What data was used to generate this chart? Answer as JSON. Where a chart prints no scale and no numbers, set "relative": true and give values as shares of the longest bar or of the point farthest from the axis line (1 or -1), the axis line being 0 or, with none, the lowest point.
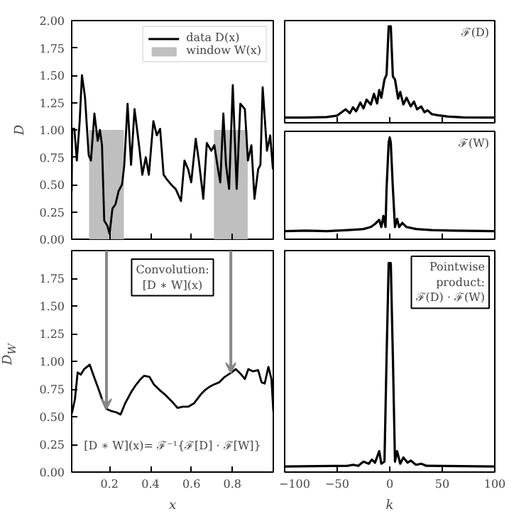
{
  "chart_data": [
    {
      "type": "line",
      "xlim": [
        0.015,
        1.0
      ],
      "ylim": [
        0,
        2
      ],
      "xticks": [
        0.2,
        0.4,
        0.6,
        0.8
      ],
      "yticks": [
        {
          "value": 0,
          "label": "0.00"
        },
        {
          "value": 0.25,
          "label": "0.25"
        },
        {
          "value": 0.5,
          "label": "0.50"
        },
        {
          "value": 0.75,
          "label": "0.75"
        },
        {
          "value": 1,
          "label": "1.00"
        },
        {
          "value": 1.25,
          "label": "1.25"
        },
        {
          "value": 1.5,
          "label": "1.50"
        },
        {
          "value": 1.75,
          "label": "1.75"
        },
        {
          "value": 2,
          "label": "2.00"
        }
      ],
      "tick_labels": "y",
      "ylabel": "D",
      "legend": "top right",
      "grid": false,
      "series": [
        {
          "name": "data D(x)",
          "type": "line",
          "color": "#000000",
          "x": [
            0.015,
            0.017,
            0.028,
            0.04,
            0.054,
            0.065,
            0.08,
            0.098,
            0.109,
            0.126,
            0.142,
            0.153,
            0.163,
            0.174,
            0.19,
            0.2,
            0.214,
            0.229,
            0.244,
            0.261,
            0.272,
            0.288,
            0.305,
            0.322,
            0.344,
            0.36,
            0.377,
            0.392,
            0.414,
            0.431,
            0.447,
            0.464,
            0.479,
            0.501,
            0.523,
            0.549,
            0.566,
            0.584,
            0.599,
            0.621,
            0.636,
            0.658,
            0.675,
            0.697,
            0.712,
            0.73,
            0.741,
            0.756,
            0.769,
            0.784,
            0.802,
            0.821,
            0.839,
            0.861,
            0.876,
            0.893,
            0.908,
            0.926,
            0.937,
            0.948,
            0.969,
            0.985,
            0.998
          ],
          "values": [
            0.44,
            1.01,
            1.01,
            0.72,
            1.08,
            1.5,
            1.3,
            0.77,
            0.72,
            1.15,
            0.9,
            1.0,
            0.86,
            0.17,
            0.12,
            0.05,
            0.28,
            0.32,
            0.44,
            0.5,
            0.68,
            1.24,
            0.68,
            1.19,
            0.86,
            0.59,
            0.75,
            0.59,
            1.08,
            0.95,
            1.01,
            0.59,
            0.55,
            0.5,
            0.46,
            0.35,
            0.72,
            0.64,
            0.52,
            0.92,
            0.72,
            0.37,
            0.88,
            0.81,
            0.86,
            0.64,
            0.52,
            1.15,
            0.68,
            0.46,
            1.41,
            0.46,
            1.24,
            1.19,
            0.72,
            0.86,
            0.37,
            0.64,
            0.68,
            1.39,
            0.81,
            0.95,
            0.64
          ]
        },
        {
          "name": "window W(x)",
          "type": "area",
          "color": "#bfbfbf",
          "x": [
            0.1,
            0.27,
            0.5,
            0.71,
            0.875
          ],
          "values": [
            1,
            1,
            null,
            1,
            1
          ]
        }
      ]
    },
    {
      "type": "line",
      "xlim": [
        0.015,
        1.0
      ],
      "ylim": [
        0,
        2
      ],
      "xticks": [
        0.2,
        0.4,
        0.6,
        0.8
      ],
      "yticks": [
        {
          "value": 0,
          "label": "0.00"
        },
        {
          "value": 0.25,
          "label": "0.25"
        },
        {
          "value": 0.5,
          "label": "0.50"
        },
        {
          "value": 0.75,
          "label": "0.75"
        },
        {
          "value": 1,
          "label": "1.00"
        },
        {
          "value": 1.25,
          "label": "1.25"
        },
        {
          "value": 1.5,
          "label": "1.50"
        },
        {
          "value": 1.75,
          "label": "1.75"
        }
      ],
      "xlabel": "x",
      "ylabel": "D$_{W}$",
      "grid": false,
      "annotations": [
        "Convolution:\n[D ∗ W](x)",
        "[D ∗ W](x)= ℱ⁻¹{ℱ[D] · ℱ[W]}"
      ],
      "series": [
        {
          "color": "#000000",
          "x": [
            0.016,
            0.031,
            0.044,
            0.059,
            0.076,
            0.103,
            0.124,
            0.146,
            0.167,
            0.185,
            0.21,
            0.232,
            0.254,
            0.276,
            0.308,
            0.33,
            0.352,
            0.369,
            0.395,
            0.417,
            0.445,
            0.471,
            0.503,
            0.532,
            0.558,
            0.584,
            0.612,
            0.645,
            0.666,
            0.688,
            0.709,
            0.735,
            0.763,
            0.796,
            0.817,
            0.839,
            0.861,
            0.878,
            0.9,
            0.926,
            0.943,
            0.958,
            0.976,
            0.991,
            1.0
          ],
          "values": [
            0.53,
            0.66,
            0.9,
            0.88,
            0.93,
            0.97,
            0.86,
            0.75,
            0.64,
            0.57,
            0.55,
            0.54,
            0.52,
            0.62,
            0.73,
            0.79,
            0.84,
            0.87,
            0.86,
            0.79,
            0.74,
            0.7,
            0.64,
            0.58,
            0.59,
            0.59,
            0.62,
            0.7,
            0.74,
            0.77,
            0.79,
            0.81,
            0.86,
            0.9,
            0.93,
            0.89,
            0.84,
            0.93,
            0.91,
            0.92,
            0.81,
            0.8,
            0.95,
            0.84,
            0.55
          ]
        }
      ]
    },
    {
      "type": "line",
      "relative": true,
      "xlim": [
        -100,
        100
      ],
      "xticks": [
        -100,
        -50,
        0,
        50,
        100
      ],
      "tick_labels": false,
      "annotations": [
        "ℱ(D)"
      ],
      "series": [
        {
          "color": "#000000",
          "x": [
            -100,
            -80,
            -60,
            -50,
            -42,
            -38,
            -35,
            -32,
            -28,
            -25,
            -22,
            -18,
            -15,
            -12,
            -10,
            -8,
            -5,
            -3,
            -1,
            0,
            1,
            3,
            5,
            8,
            10,
            13,
            16,
            20,
            23,
            26,
            30,
            33,
            36,
            40,
            45,
            55,
            70,
            100
          ],
          "values": [
            0.054,
            0.054,
            0.06,
            0.075,
            0.14,
            0.1,
            0.16,
            0.12,
            0.21,
            0.15,
            0.24,
            0.19,
            0.3,
            0.2,
            0.34,
            0.26,
            0.45,
            0.5,
            1.0,
            1.0,
            1.0,
            0.48,
            0.45,
            0.25,
            0.32,
            0.19,
            0.26,
            0.17,
            0.22,
            0.14,
            0.17,
            0.11,
            0.13,
            0.09,
            0.08,
            0.065,
            0.056,
            0.054
          ]
        }
      ]
    },
    {
      "type": "line",
      "relative": true,
      "xlim": [
        -100,
        100
      ],
      "xticks": [
        -100,
        -50,
        0,
        50,
        100
      ],
      "tick_labels": false,
      "annotations": [
        "ℱ(W)"
      ],
      "series": [
        {
          "color": "#000000",
          "x": [
            -100,
            -80,
            -60,
            -40,
            -25,
            -18,
            -14,
            -10,
            -8,
            -6,
            -4,
            -3,
            -1,
            0,
            1,
            3,
            5,
            7,
            9,
            12,
            16,
            25,
            40,
            60,
            100
          ],
          "values": [
            0.08,
            0.085,
            0.08,
            0.09,
            0.1,
            0.12,
            0.15,
            0.19,
            0.12,
            0.23,
            0.12,
            0.5,
            0.95,
            1.0,
            0.95,
            0.5,
            0.12,
            0.2,
            0.12,
            0.16,
            0.12,
            0.1,
            0.09,
            0.085,
            0.08
          ]
        }
      ]
    },
    {
      "type": "line",
      "relative": true,
      "xlim": [
        -100,
        100
      ],
      "xticks": [
        -100,
        -50,
        0,
        50,
        100
      ],
      "tick_labels": "x",
      "xlabel": "k",
      "annotations": [
        "Pointwise\nproduct:\nℱ(D) · ℱ(W)"
      ],
      "series": [
        {
          "color": "#000000",
          "x": [
            -100,
            -40,
            -35,
            -30,
            -25,
            -20,
            -17,
            -14,
            -10,
            -8,
            -5,
            -3,
            -1,
            0,
            1,
            3,
            5,
            7,
            10,
            13,
            17,
            20,
            25,
            30,
            35,
            100
          ],
          "values": [
            0.027,
            0.03,
            0.035,
            0.03,
            0.05,
            0.04,
            0.06,
            0.045,
            0.1,
            0.04,
            0.05,
            0.55,
            1.0,
            1.0,
            1.0,
            0.55,
            0.05,
            0.1,
            0.04,
            0.07,
            0.045,
            0.055,
            0.035,
            0.04,
            0.03,
            0.027
          ]
        }
      ]
    }
  ]
}
